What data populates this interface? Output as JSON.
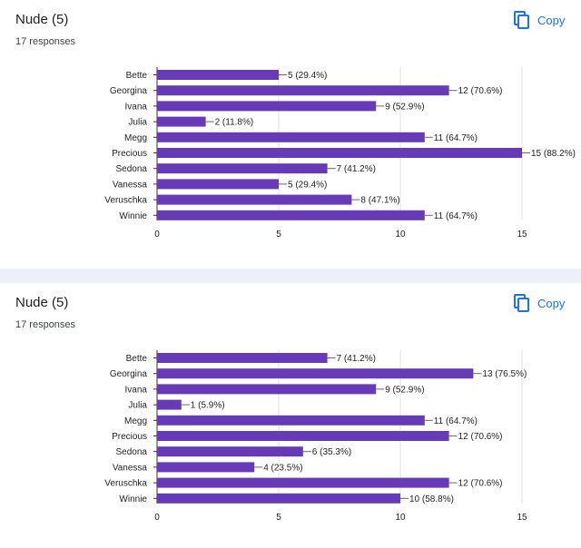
{
  "cards": [
    {
      "title": "Nude (5)",
      "subtitle": "17 responses",
      "copy_label": "Copy"
    },
    {
      "title": "Nude (5)",
      "subtitle": "17 responses",
      "copy_label": "Copy"
    }
  ],
  "icons": {
    "copy": "copy-icon"
  },
  "colors": {
    "bar": "#673ab7",
    "accent": "#1a73e8",
    "gridline": "#e0e0e0",
    "divider": "#eef0f7"
  },
  "chart_data": [
    {
      "type": "bar",
      "orientation": "horizontal",
      "categories": [
        "Bette",
        "Georgina",
        "Ivana",
        "Julia",
        "Megg",
        "Precious",
        "Sedona",
        "Vanessa",
        "Veruschka",
        "Winnie"
      ],
      "values": [
        5,
        12,
        9,
        2,
        11,
        15,
        7,
        5,
        8,
        11
      ],
      "data_labels": [
        "5 (29.4%)",
        "12 (70.6%)",
        "9 (52.9%)",
        "2 (11.8%)",
        "11 (64.7%)",
        "15 (88.2%)",
        "7 (41.2%)",
        "5 (29.4%)",
        "8 (47.1%)",
        "11 (64.7%)"
      ],
      "xlim": [
        0,
        15
      ],
      "xticks": [
        0,
        5,
        10,
        15
      ],
      "grid": true,
      "legend": "none"
    },
    {
      "type": "bar",
      "orientation": "horizontal",
      "categories": [
        "Bette",
        "Georgina",
        "Ivana",
        "Julia",
        "Megg",
        "Precious",
        "Sedona",
        "Vanessa",
        "Veruschka",
        "Winnie"
      ],
      "values": [
        7,
        13,
        9,
        1,
        11,
        12,
        6,
        4,
        12,
        10
      ],
      "data_labels": [
        "7 (41.2%)",
        "13 (76.5%)",
        "9 (52.9%)",
        "1 (5.9%)",
        "11 (64.7%)",
        "12 (70.6%)",
        "6 (35.3%)",
        "4 (23.5%)",
        "12 (70.6%)",
        "10 (58.8%)"
      ],
      "xlim": [
        0,
        15
      ],
      "xticks": [
        0,
        5,
        10,
        15
      ],
      "grid": true,
      "legend": "none"
    }
  ]
}
